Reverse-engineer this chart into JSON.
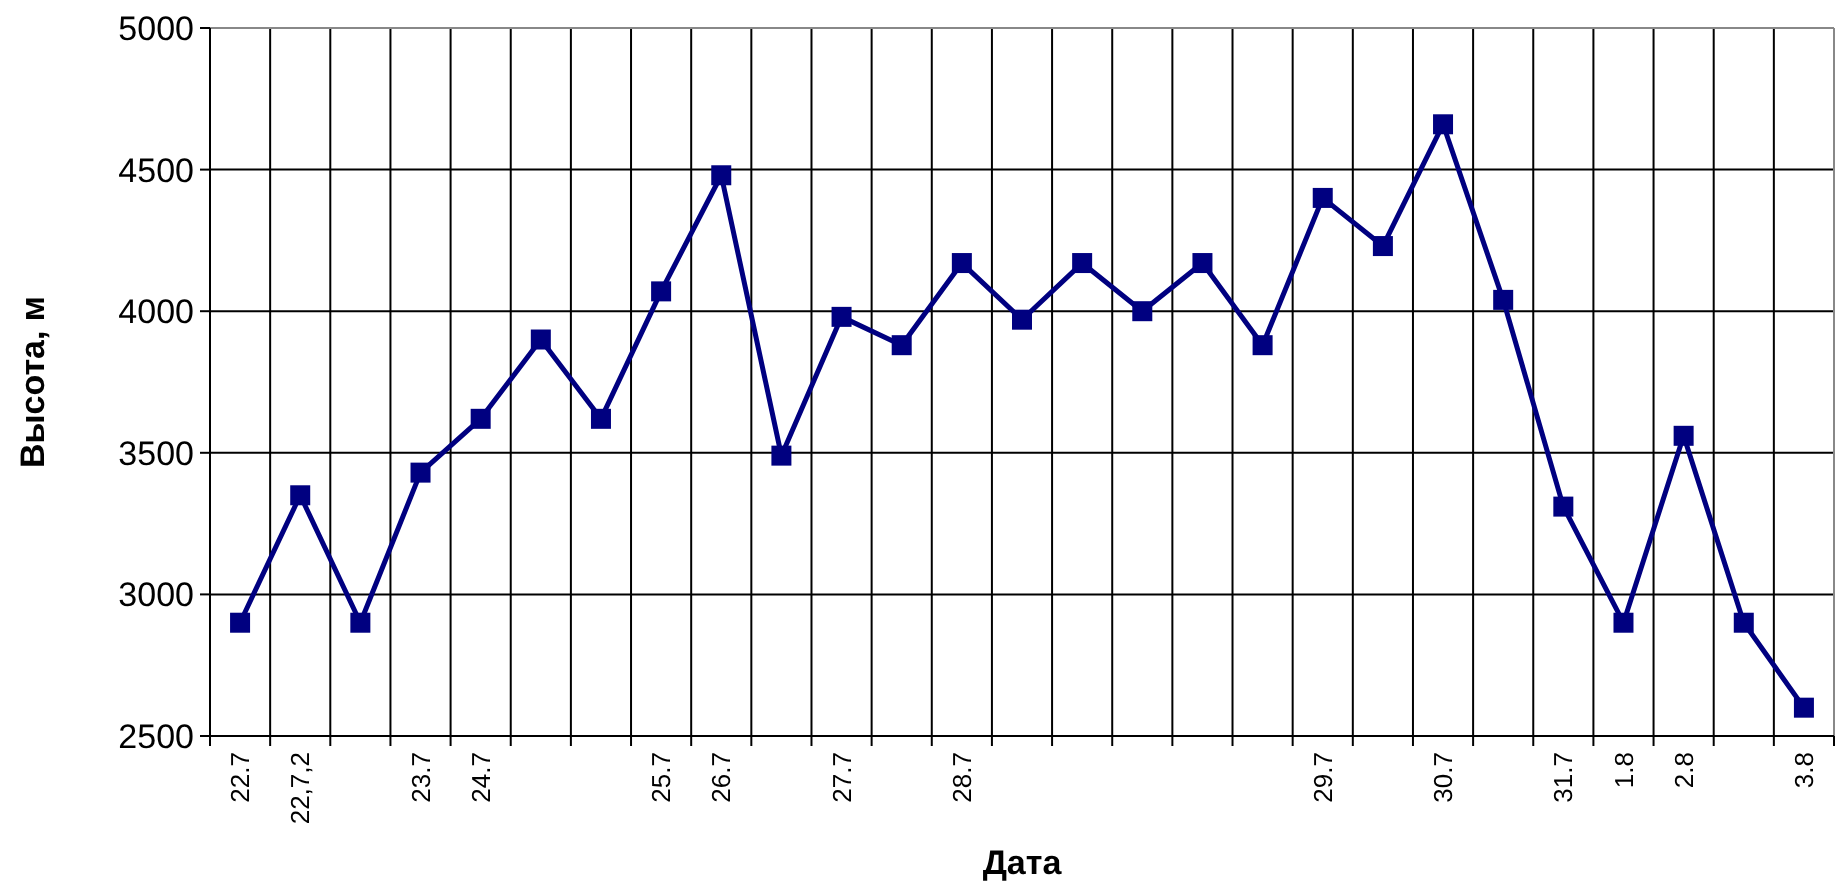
{
  "chart_data": {
    "type": "line",
    "xlabel": "Дата",
    "ylabel": "Высота, м",
    "categories": [
      "22.7",
      "22,7,2",
      null,
      "23.7",
      "24.7",
      null,
      null,
      "25.7",
      "26.7",
      null,
      "27.7",
      null,
      "28.7",
      null,
      null,
      null,
      null,
      null,
      "29.7",
      null,
      "30.7",
      null,
      "31.7",
      "1.8",
      "2.8",
      null,
      "3.8"
    ],
    "series": [
      {
        "color": "#000080",
        "values": [
          2900,
          3350,
          2900,
          3430,
          3620,
          3900,
          3620,
          4070,
          4480,
          3490,
          3980,
          3880,
          4170,
          3970,
          4170,
          4000,
          4170,
          3880,
          4400,
          4230,
          4660,
          4040,
          3310,
          2900,
          3560,
          2900,
          2600
        ]
      }
    ],
    "ylim": [
      2500,
      5000
    ],
    "yticks": [
      2500,
      3000,
      3500,
      4000,
      4500,
      5000
    ],
    "grid": true,
    "marker": "square",
    "line_style": "solid"
  }
}
